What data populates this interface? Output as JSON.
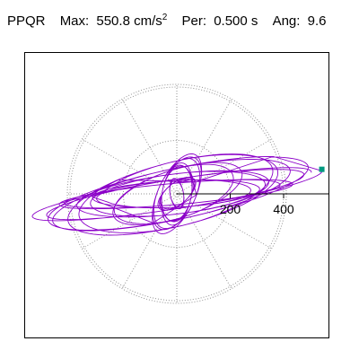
{
  "header": {
    "station": "PPQR",
    "max_label": "Max:",
    "max_value": "550.8",
    "max_unit_base": "cm/s",
    "max_unit_exp": "2",
    "per_label": "Per:",
    "per_value": "0.500 s",
    "ang_label": "Ang:",
    "ang_value": "9.6"
  },
  "colors": {
    "trace": "#8b00c8",
    "marker": "#009a80",
    "grid": "#909090",
    "axis": "#000000"
  },
  "chart_data": {
    "type": "line",
    "subtype": "polar particle-motion orbit",
    "max_value": 550.8,
    "max_angle_deg": 9.6,
    "rings": [
      200,
      400
    ],
    "ring_labels": [
      "200",
      "400"
    ],
    "spoke_step_deg": 30,
    "marker_point": [
      550.8,
      9.6
    ],
    "orbit_ellipses": [
      {
        "a": 510,
        "b": 55,
        "rot_deg": 9,
        "turns": 2
      },
      {
        "a": 470,
        "b": 95,
        "rot_deg": 12,
        "turns": 2
      },
      {
        "a": 420,
        "b": 40,
        "rot_deg": 5,
        "turns": 2
      },
      {
        "a": 390,
        "b": 120,
        "rot_deg": 14,
        "turns": 2
      },
      {
        "a": 350,
        "b": 75,
        "rot_deg": 7,
        "turns": 2
      },
      {
        "a": 300,
        "b": 50,
        "rot_deg": 3,
        "turns": 2
      },
      {
        "a": 240,
        "b": 90,
        "rot_deg": 18,
        "turns": 2
      },
      {
        "a": 150,
        "b": 70,
        "rot_deg": 65,
        "turns": 3
      },
      {
        "a": 110,
        "b": 55,
        "rot_deg": 80,
        "turns": 3
      },
      {
        "a": 80,
        "b": 40,
        "rot_deg": 40,
        "turns": 3
      },
      {
        "a": 55,
        "b": 25,
        "rot_deg": 100,
        "turns": 3
      }
    ]
  }
}
